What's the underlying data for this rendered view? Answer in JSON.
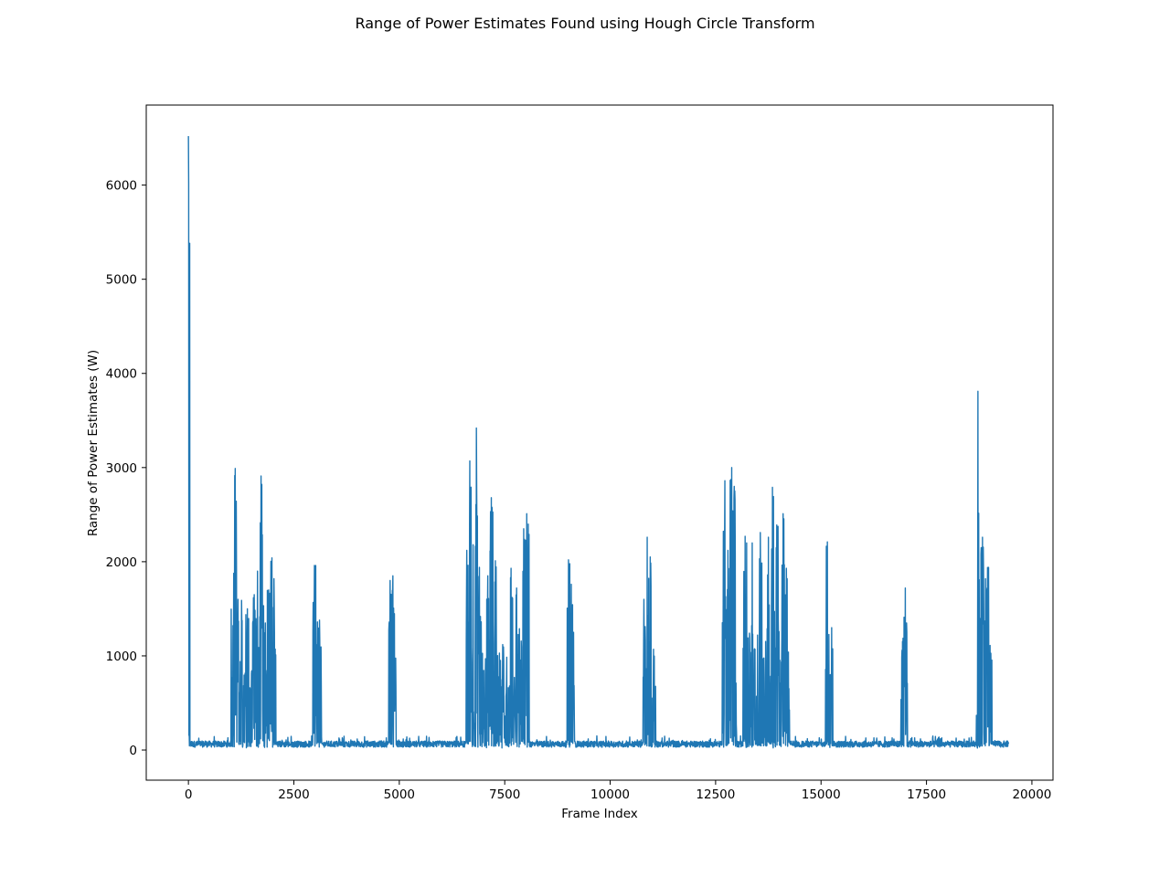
{
  "chart_data": {
    "type": "line",
    "title": "Range of Power Estimates Found using Hough Circle Transform",
    "xlabel": "Frame Index",
    "ylabel": "Range of Power Estimates (W)",
    "xlim": [
      -1000,
      20500
    ],
    "ylim": [
      -320,
      6850
    ],
    "xticks": [
      0,
      2500,
      5000,
      7500,
      10000,
      12500,
      15000,
      17500,
      20000
    ],
    "yticks": [
      0,
      1000,
      2000,
      3000,
      4000,
      5000,
      6000
    ],
    "grid": false,
    "line_color": "#1f77b4",
    "series": [
      {
        "x_range": [
          0,
          19450
        ],
        "baseline": [
          30,
          150
        ],
        "bursts": [
          {
            "x": [
              0,
              35
            ],
            "peaks": [
              [
                0,
                6520
              ],
              [
                20,
                180
              ]
            ]
          },
          {
            "x": [
              1000,
              2080
            ],
            "peaks": [
              [
                1020,
                880
              ],
              [
                1110,
                2990
              ],
              [
                1260,
                1590
              ],
              [
                1400,
                1500
              ],
              [
                1560,
                1650
              ],
              [
                1640,
                1900
              ],
              [
                1720,
                2910
              ],
              [
                1820,
                1100
              ],
              [
                1900,
                1700
              ],
              [
                1980,
                2040
              ],
              [
                2030,
                1820
              ]
            ]
          },
          {
            "x": [
              2950,
              3160
            ],
            "peaks": [
              [
                2990,
                1960
              ],
              [
                3060,
                1360
              ],
              [
                3110,
                1380
              ]
            ]
          },
          {
            "x": [
              4750,
              4950
            ],
            "peaks": [
              [
                4780,
                1800
              ],
              [
                4850,
                1850
              ],
              [
                4900,
                900
              ]
            ]
          },
          {
            "x": [
              6580,
              8080
            ],
            "peaks": [
              [
                6600,
                2120
              ],
              [
                6670,
                3070
              ],
              [
                6750,
                2180
              ],
              [
                6830,
                3420
              ],
              [
                6900,
                1940
              ],
              [
                7100,
                1850
              ],
              [
                7180,
                2680
              ],
              [
                7280,
                2010
              ],
              [
                7450,
                1120
              ],
              [
                7650,
                1930
              ],
              [
                7780,
                1720
              ],
              [
                7950,
                2350
              ],
              [
                8020,
                2510
              ],
              [
                8060,
                2400
              ]
            ]
          },
          {
            "x": [
              8980,
              9160
            ],
            "peaks": [
              [
                9010,
                2020
              ],
              [
                9080,
                1760
              ],
              [
                9130,
                1250
              ]
            ]
          },
          {
            "x": [
              10780,
              11080
            ],
            "peaks": [
              [
                10800,
                1600
              ],
              [
                10880,
                2260
              ],
              [
                10950,
                2050
              ],
              [
                11040,
                820
              ]
            ]
          },
          {
            "x": [
              12650,
              13000
            ],
            "peaks": [
              [
                12670,
                1250
              ],
              [
                12720,
                2860
              ],
              [
                12790,
                2120
              ],
              [
                12880,
                3000
              ],
              [
                12940,
                2800
              ]
            ]
          },
          {
            "x": [
              13150,
              14250
            ],
            "peaks": [
              [
                13200,
                2270
              ],
              [
                13370,
                2200
              ],
              [
                13560,
                2310
              ],
              [
                13750,
                2260
              ],
              [
                13850,
                2790
              ],
              [
                13950,
                2390
              ],
              [
                14100,
                2510
              ],
              [
                14180,
                1930
              ]
            ]
          },
          {
            "x": [
              15100,
              15280
            ],
            "peaks": [
              [
                15150,
                2210
              ],
              [
                15250,
                1300
              ]
            ]
          },
          {
            "x": [
              16880,
              17050
            ],
            "peaks": [
              [
                16920,
                1060
              ],
              [
                16970,
                1410
              ],
              [
                17000,
                1720
              ]
            ]
          },
          {
            "x": [
              18680,
              19050
            ],
            "peaks": [
              [
                18720,
                3810
              ],
              [
                18790,
                2080
              ],
              [
                18830,
                2260
              ],
              [
                18900,
                1820
              ],
              [
                18970,
                1940
              ]
            ]
          }
        ]
      }
    ]
  }
}
